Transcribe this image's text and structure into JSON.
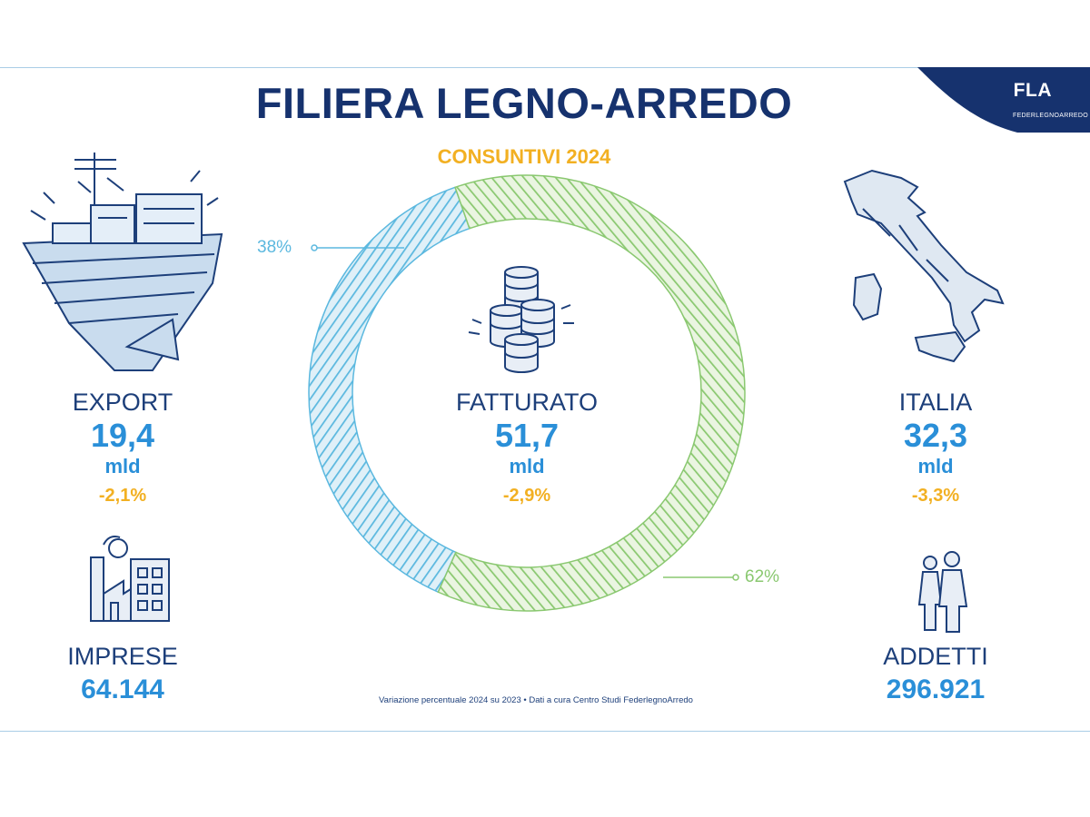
{
  "header": {
    "title": "FILIERA LEGNO-ARREDO",
    "subtitle": "CONSUNTIVI 2024",
    "logo_text": "FLA",
    "logo_subtext": "FEDERLEGNOARREDO"
  },
  "chart_data": {
    "type": "pie",
    "title": "FILIERA LEGNO-ARREDO",
    "subtitle": "CONSUNTIVI 2024",
    "center": {
      "label": "FATTURATO",
      "value": "51,7",
      "unit": "mld",
      "change": "-2,9%"
    },
    "slices": [
      {
        "name": "EXPORT",
        "value": 38,
        "label": "38%",
        "color": "#5bb8df"
      },
      {
        "name": "ITALIA",
        "value": 62,
        "label": "62%",
        "color": "#8ac870"
      }
    ]
  },
  "export": {
    "label": "EXPORT",
    "value": "19,4",
    "unit": "mld",
    "change": "-2,1%"
  },
  "italia": {
    "label": "ITALIA",
    "value": "32,3",
    "unit": "mld",
    "change": "-3,3%"
  },
  "imprese": {
    "label": "IMPRESE",
    "value": "64.144"
  },
  "addetti": {
    "label": "ADDETTI",
    "value": "296.921"
  },
  "footnote": "Variazione percentuale 2024 su 2023 • Dati a cura Centro Studi FederlegnoArredo",
  "colors": {
    "navy": "#16326e",
    "blue": "#2a8fd8",
    "yellow": "#f2b022",
    "ring_blue": "#5bb8df",
    "ring_green": "#8ac870"
  },
  "icons": [
    "ship-icon",
    "coins-icon",
    "italy-map-icon",
    "factory-icon",
    "people-icon"
  ]
}
